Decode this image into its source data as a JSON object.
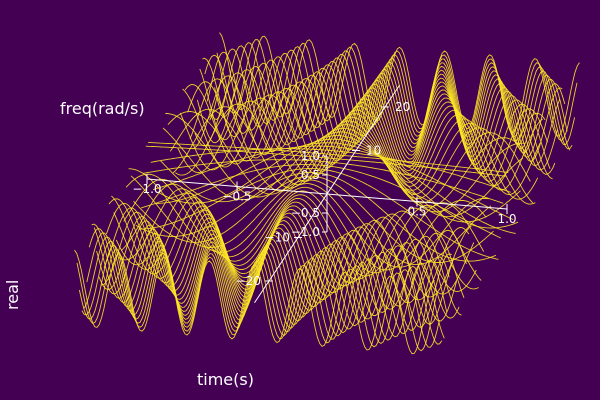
{
  "theme": {
    "background": "#440154",
    "line_color": "#fde725",
    "axis_color": "#ffffff"
  },
  "chart_data": {
    "type": "line",
    "title": "",
    "projection": "3d",
    "grid": false,
    "legend": "none",
    "axes": {
      "x": {
        "label": "time(s)",
        "range": [
          -1.0,
          1.0
        ],
        "ticks": [
          -1.0,
          -0.5,
          0.5,
          1.0
        ],
        "tick_labels": [
          "−1.0",
          "−0.5",
          "0.5",
          "1.0"
        ]
      },
      "y": {
        "label": "freq(rad/s)",
        "range": [
          -25,
          25
        ],
        "ticks": [
          -20,
          -10,
          10,
          20
        ],
        "tick_labels": [
          "−20",
          "−10",
          "10",
          "20"
        ]
      },
      "z": {
        "label": "real",
        "range": [
          -1.0,
          1.0
        ],
        "ticks": [
          -1.0,
          -0.5,
          0.5,
          1.0
        ],
        "tick_labels": [
          "−1.0",
          "−0.5",
          "0.5",
          "1.0"
        ]
      }
    },
    "surface": {
      "function": "cos(freq * time)",
      "time_range": [
        -1.0,
        1.0
      ],
      "freq_range": [
        -25,
        25
      ],
      "n_curves": 60
    }
  }
}
